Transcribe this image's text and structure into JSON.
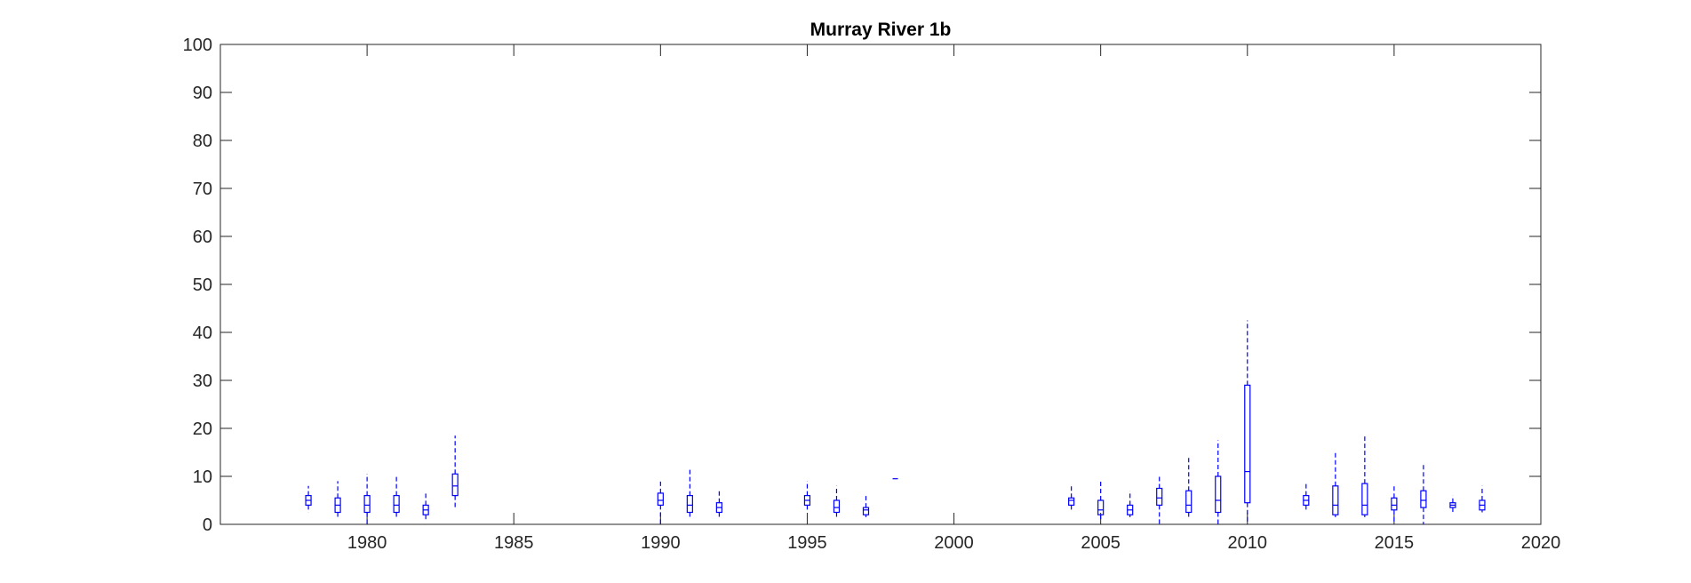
{
  "chart_data": {
    "type": "box",
    "title": "Murray River 1b",
    "xlabel": "",
    "ylabel": "",
    "xlim": [
      1975,
      2020
    ],
    "ylim": [
      0,
      100
    ],
    "xticks": [
      1980,
      1985,
      1990,
      1995,
      2000,
      2005,
      2010,
      2015,
      2020
    ],
    "yticks": [
      0,
      10,
      20,
      30,
      40,
      50,
      60,
      70,
      80,
      90,
      100
    ],
    "grid": false,
    "legend": "none",
    "box_color": "#0000ff",
    "axis_color": "#262626",
    "boxes": [
      {
        "x": 1978,
        "whisker_low": 2.5,
        "q1": 4.0,
        "median": 5.0,
        "q3": 6.0,
        "whisker_high": 8.0
      },
      {
        "x": 1979,
        "whisker_low": 1.5,
        "q1": 2.5,
        "median": 4.0,
        "q3": 5.5,
        "whisker_high": 9.0
      },
      {
        "x": 1980,
        "whisker_low": 0.0,
        "q1": 2.5,
        "median": 4.0,
        "q3": 6.0,
        "whisker_high": 10.5
      },
      {
        "x": 1981,
        "whisker_low": 1.5,
        "q1": 2.5,
        "median": 4.0,
        "q3": 6.0,
        "whisker_high": 10.0
      },
      {
        "x": 1982,
        "whisker_low": 1.0,
        "q1": 2.0,
        "median": 3.0,
        "q3": 4.0,
        "whisker_high": 6.5
      },
      {
        "x": 1983,
        "whisker_low": 3.5,
        "q1": 6.0,
        "median": 8.0,
        "q3": 10.5,
        "whisker_high": 18.5
      },
      {
        "x": 1990,
        "whisker_low": 0.0,
        "q1": 4.0,
        "median": 5.0,
        "q3": 6.5,
        "whisker_high": 9.0
      },
      {
        "x": 1991,
        "whisker_low": 1.5,
        "q1": 2.5,
        "median": 4.0,
        "q3": 6.0,
        "whisker_high": 11.5
      },
      {
        "x": 1992,
        "whisker_low": 1.5,
        "q1": 2.5,
        "median": 3.5,
        "q3": 4.5,
        "whisker_high": 7.0
      },
      {
        "x": 1995,
        "whisker_low": 3.0,
        "q1": 4.0,
        "median": 5.0,
        "q3": 6.0,
        "whisker_high": 9.0
      },
      {
        "x": 1996,
        "whisker_low": 1.5,
        "q1": 2.5,
        "median": 3.5,
        "q3": 5.0,
        "whisker_high": 8.0
      },
      {
        "x": 1997,
        "whisker_low": 1.5,
        "q1": 2.0,
        "median": 3.0,
        "q3": 3.5,
        "whisker_high": 6.0
      },
      {
        "x": 1998,
        "whisker_low": 9.5,
        "q1": 9.5,
        "median": 9.5,
        "q3": 9.5,
        "whisker_high": 9.5
      },
      {
        "x": 2004,
        "whisker_low": 3.0,
        "q1": 4.0,
        "median": 5.0,
        "q3": 5.5,
        "whisker_high": 8.0
      },
      {
        "x": 2005,
        "whisker_low": 0.5,
        "q1": 2.0,
        "median": 3.0,
        "q3": 5.0,
        "whisker_high": 9.0
      },
      {
        "x": 2006,
        "whisker_low": 1.5,
        "q1": 2.0,
        "median": 3.0,
        "q3": 4.0,
        "whisker_high": 7.0
      },
      {
        "x": 2007,
        "whisker_low": 0.0,
        "q1": 4.0,
        "median": 5.5,
        "q3": 7.5,
        "whisker_high": 10.0
      },
      {
        "x": 2008,
        "whisker_low": 1.5,
        "q1": 2.5,
        "median": 4.0,
        "q3": 7.0,
        "whisker_high": 14.0
      },
      {
        "x": 2009,
        "whisker_low": 0.0,
        "q1": 2.5,
        "median": 5.0,
        "q3": 10.0,
        "whisker_high": 17.5
      },
      {
        "x": 2010,
        "whisker_low": 0.0,
        "q1": 4.5,
        "median": 11.0,
        "q3": 29.0,
        "whisker_high": 42.5
      },
      {
        "x": 2012,
        "whisker_low": 3.0,
        "q1": 4.0,
        "median": 5.0,
        "q3": 6.0,
        "whisker_high": 8.5
      },
      {
        "x": 2013,
        "whisker_low": 1.5,
        "q1": 2.0,
        "median": 4.0,
        "q3": 8.0,
        "whisker_high": 15.0
      },
      {
        "x": 2014,
        "whisker_low": 1.5,
        "q1": 2.0,
        "median": 4.0,
        "q3": 8.5,
        "whisker_high": 18.5
      },
      {
        "x": 2015,
        "whisker_low": 0.0,
        "q1": 3.0,
        "median": 4.0,
        "q3": 5.5,
        "whisker_high": 8.0
      },
      {
        "x": 2016,
        "whisker_low": 0.0,
        "q1": 3.5,
        "median": 5.0,
        "q3": 7.0,
        "whisker_high": 12.5
      },
      {
        "x": 2017,
        "whisker_low": 2.5,
        "q1": 3.5,
        "median": 4.0,
        "q3": 4.5,
        "whisker_high": 6.0
      },
      {
        "x": 2018,
        "whisker_low": 2.5,
        "q1": 3.0,
        "median": 4.0,
        "q3": 5.0,
        "whisker_high": 8.0
      }
    ]
  }
}
